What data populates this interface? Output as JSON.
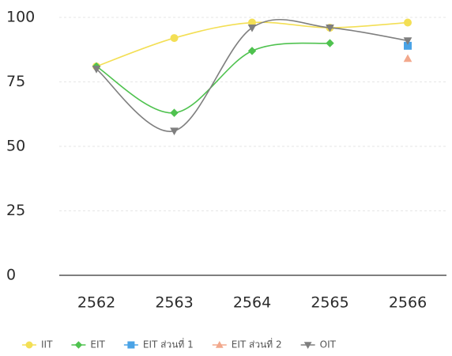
{
  "chart_data": {
    "type": "line",
    "categories": [
      "2562",
      "2563",
      "2564",
      "2565",
      "2566"
    ],
    "series": [
      {
        "name": "IIT",
        "color": "#f3df55",
        "marker": "circle",
        "values": [
          81,
          92,
          98,
          96,
          98
        ]
      },
      {
        "name": "EIT",
        "color": "#4fc24f",
        "marker": "diamond",
        "values": [
          81,
          63,
          87,
          90,
          null
        ]
      },
      {
        "name": "EIT ส่วนที่ 1",
        "color": "#4aa3e6",
        "marker": "square",
        "values": [
          null,
          null,
          null,
          null,
          89
        ]
      },
      {
        "name": "EIT ส่วนที่ 2",
        "color": "#f2a88c",
        "marker": "triangle-up",
        "values": [
          null,
          null,
          null,
          null,
          84
        ]
      },
      {
        "name": "OIT",
        "color": "#7f7f7f",
        "marker": "triangle-down",
        "values": [
          80,
          56,
          96,
          96,
          91
        ]
      }
    ],
    "ylim": [
      0,
      100
    ],
    "yticks": [
      0,
      25,
      50,
      75,
      100
    ],
    "grid": true,
    "legend": "bottom",
    "smooth": true
  }
}
